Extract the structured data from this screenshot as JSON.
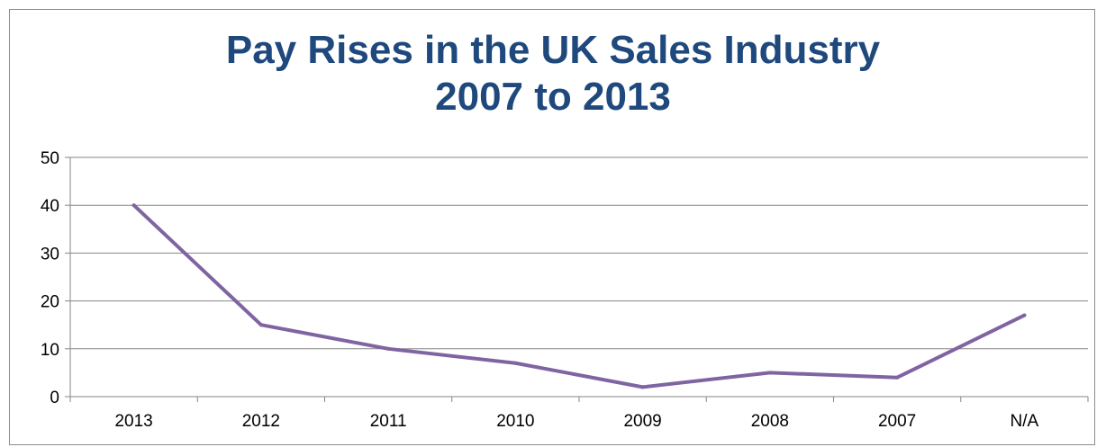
{
  "chart_data": {
    "type": "line",
    "title_line1": "Pay Rises in the UK Sales Industry",
    "title_line2": "2007 to 2013",
    "categories": [
      "2013",
      "2012",
      "2011",
      "2010",
      "2009",
      "2008",
      "2007",
      "N/A"
    ],
    "series": [
      {
        "values": [
          40,
          15,
          10,
          7,
          2,
          5,
          4,
          17
        ],
        "color": "#8064a2"
      }
    ],
    "ylim": [
      0,
      50
    ],
    "yticks": [
      "0",
      "10",
      "20",
      "30",
      "40",
      "50"
    ],
    "grid": true,
    "legend": "none"
  }
}
